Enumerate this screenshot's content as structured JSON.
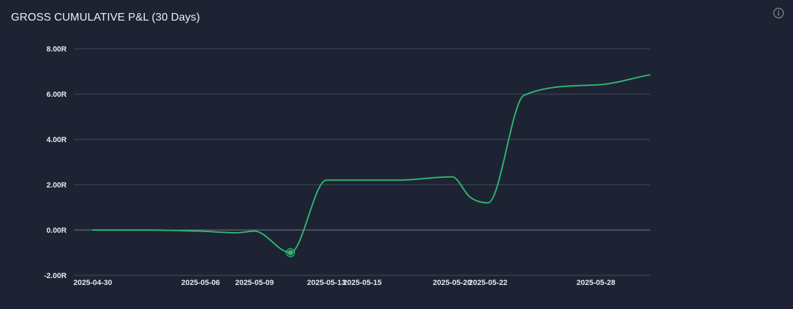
{
  "title": "GROSS CUMULATIVE P&L (30 Days)",
  "icons": {
    "info": "info-icon"
  },
  "colors": {
    "background": "#1e2333",
    "grid": "#454b5c",
    "zero_line": "#7b8090",
    "line": "#2fb872"
  },
  "chart_data": {
    "type": "line",
    "title": "GROSS CUMULATIVE P&L (30 Days)",
    "xlabel": "",
    "ylabel": "",
    "x_tick_labels": [
      "2025-04-30",
      "2025-05-06",
      "2025-05-09",
      "2025-05-13",
      "2025-05-15",
      "2025-05-20",
      "2025-05-22",
      "2025-05-28"
    ],
    "y_tick_labels": [
      "8.00R",
      "6.00R",
      "4.00R",
      "2.00R",
      "0.00R",
      "-2.00R"
    ],
    "y_ticks": [
      8,
      6,
      4,
      2,
      0,
      -2
    ],
    "ylim": [
      -2,
      8
    ],
    "grid": true,
    "legend": "none",
    "series": [
      {
        "values": [
          {
            "x": "2025-04-30",
            "y": 0.0
          },
          {
            "x": "2025-05-03",
            "y": 0.0
          },
          {
            "x": "2025-05-06",
            "y": -0.05
          },
          {
            "x": "2025-05-08",
            "y": -0.12
          },
          {
            "x": "2025-05-09",
            "y": -0.05
          },
          {
            "x": "2025-05-11",
            "y": -1.0
          },
          {
            "x": "2025-05-13",
            "y": 2.2
          },
          {
            "x": "2025-05-14",
            "y": 2.2
          },
          {
            "x": "2025-05-17",
            "y": 2.2
          },
          {
            "x": "2025-05-20",
            "y": 2.35
          },
          {
            "x": "2025-05-21",
            "y": 1.45
          },
          {
            "x": "2025-05-22",
            "y": 1.2
          },
          {
            "x": "2025-05-24",
            "y": 5.95
          },
          {
            "x": "2025-05-28",
            "y": 6.4
          },
          {
            "x": "2025-05-31",
            "y": 6.85
          }
        ]
      }
    ],
    "highlighted_point": {
      "x": "2025-05-11",
      "y": -1.0
    }
  }
}
